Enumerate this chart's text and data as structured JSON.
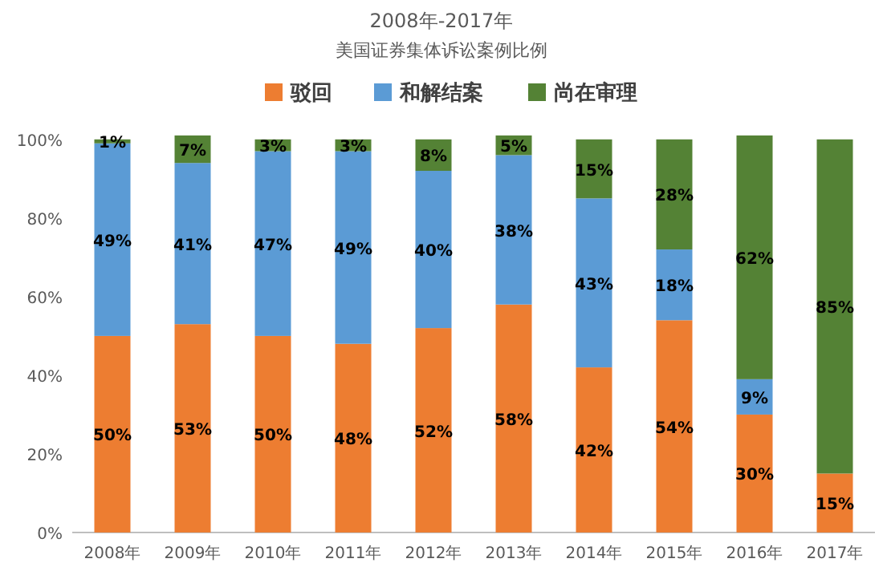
{
  "chart_data": {
    "type": "bar",
    "stacked": true,
    "title": "2008年-2017年",
    "subtitle": "美国证券集体诉讼案例比例",
    "categories": [
      "2008年",
      "2009年",
      "2010年",
      "2011年",
      "2012年",
      "2013年",
      "2014年",
      "2015年",
      "2016年",
      "2017年"
    ],
    "series": [
      {
        "name": "驳回",
        "color": "#ed7d31",
        "values": [
          50,
          53,
          50,
          48,
          52,
          58,
          42,
          54,
          30,
          15
        ],
        "value_labels": [
          "50%",
          "53%",
          "50%",
          "48%",
          "52%",
          "58%",
          "42%",
          "54%",
          "30%",
          "15%"
        ]
      },
      {
        "name": "和解结案",
        "color": "#5b9bd5",
        "values": [
          49,
          41,
          47,
          49,
          40,
          38,
          43,
          18,
          9,
          null
        ],
        "value_labels": [
          "49%",
          "41%",
          "47%",
          "49%",
          "40%",
          "38%",
          "43%",
          "18%",
          "9%",
          null
        ]
      },
      {
        "name": "尚在审理",
        "color": "#548235",
        "values": [
          1,
          7,
          3,
          3,
          8,
          5,
          15,
          28,
          62,
          85
        ],
        "value_labels": [
          "1%",
          "7%",
          "3%",
          "3%",
          "8%",
          "5%",
          "15%",
          "28%",
          "62%",
          "85%"
        ]
      }
    ],
    "ylim": [
      0,
      102
    ],
    "yticks": [
      {
        "value": 0,
        "label": "0%"
      },
      {
        "value": 20,
        "label": "20%"
      },
      {
        "value": 40,
        "label": "40%"
      },
      {
        "value": 60,
        "label": "60%"
      },
      {
        "value": 80,
        "label": "80%"
      },
      {
        "value": 100,
        "label": "100%"
      }
    ],
    "legend": "top",
    "grid": false
  }
}
